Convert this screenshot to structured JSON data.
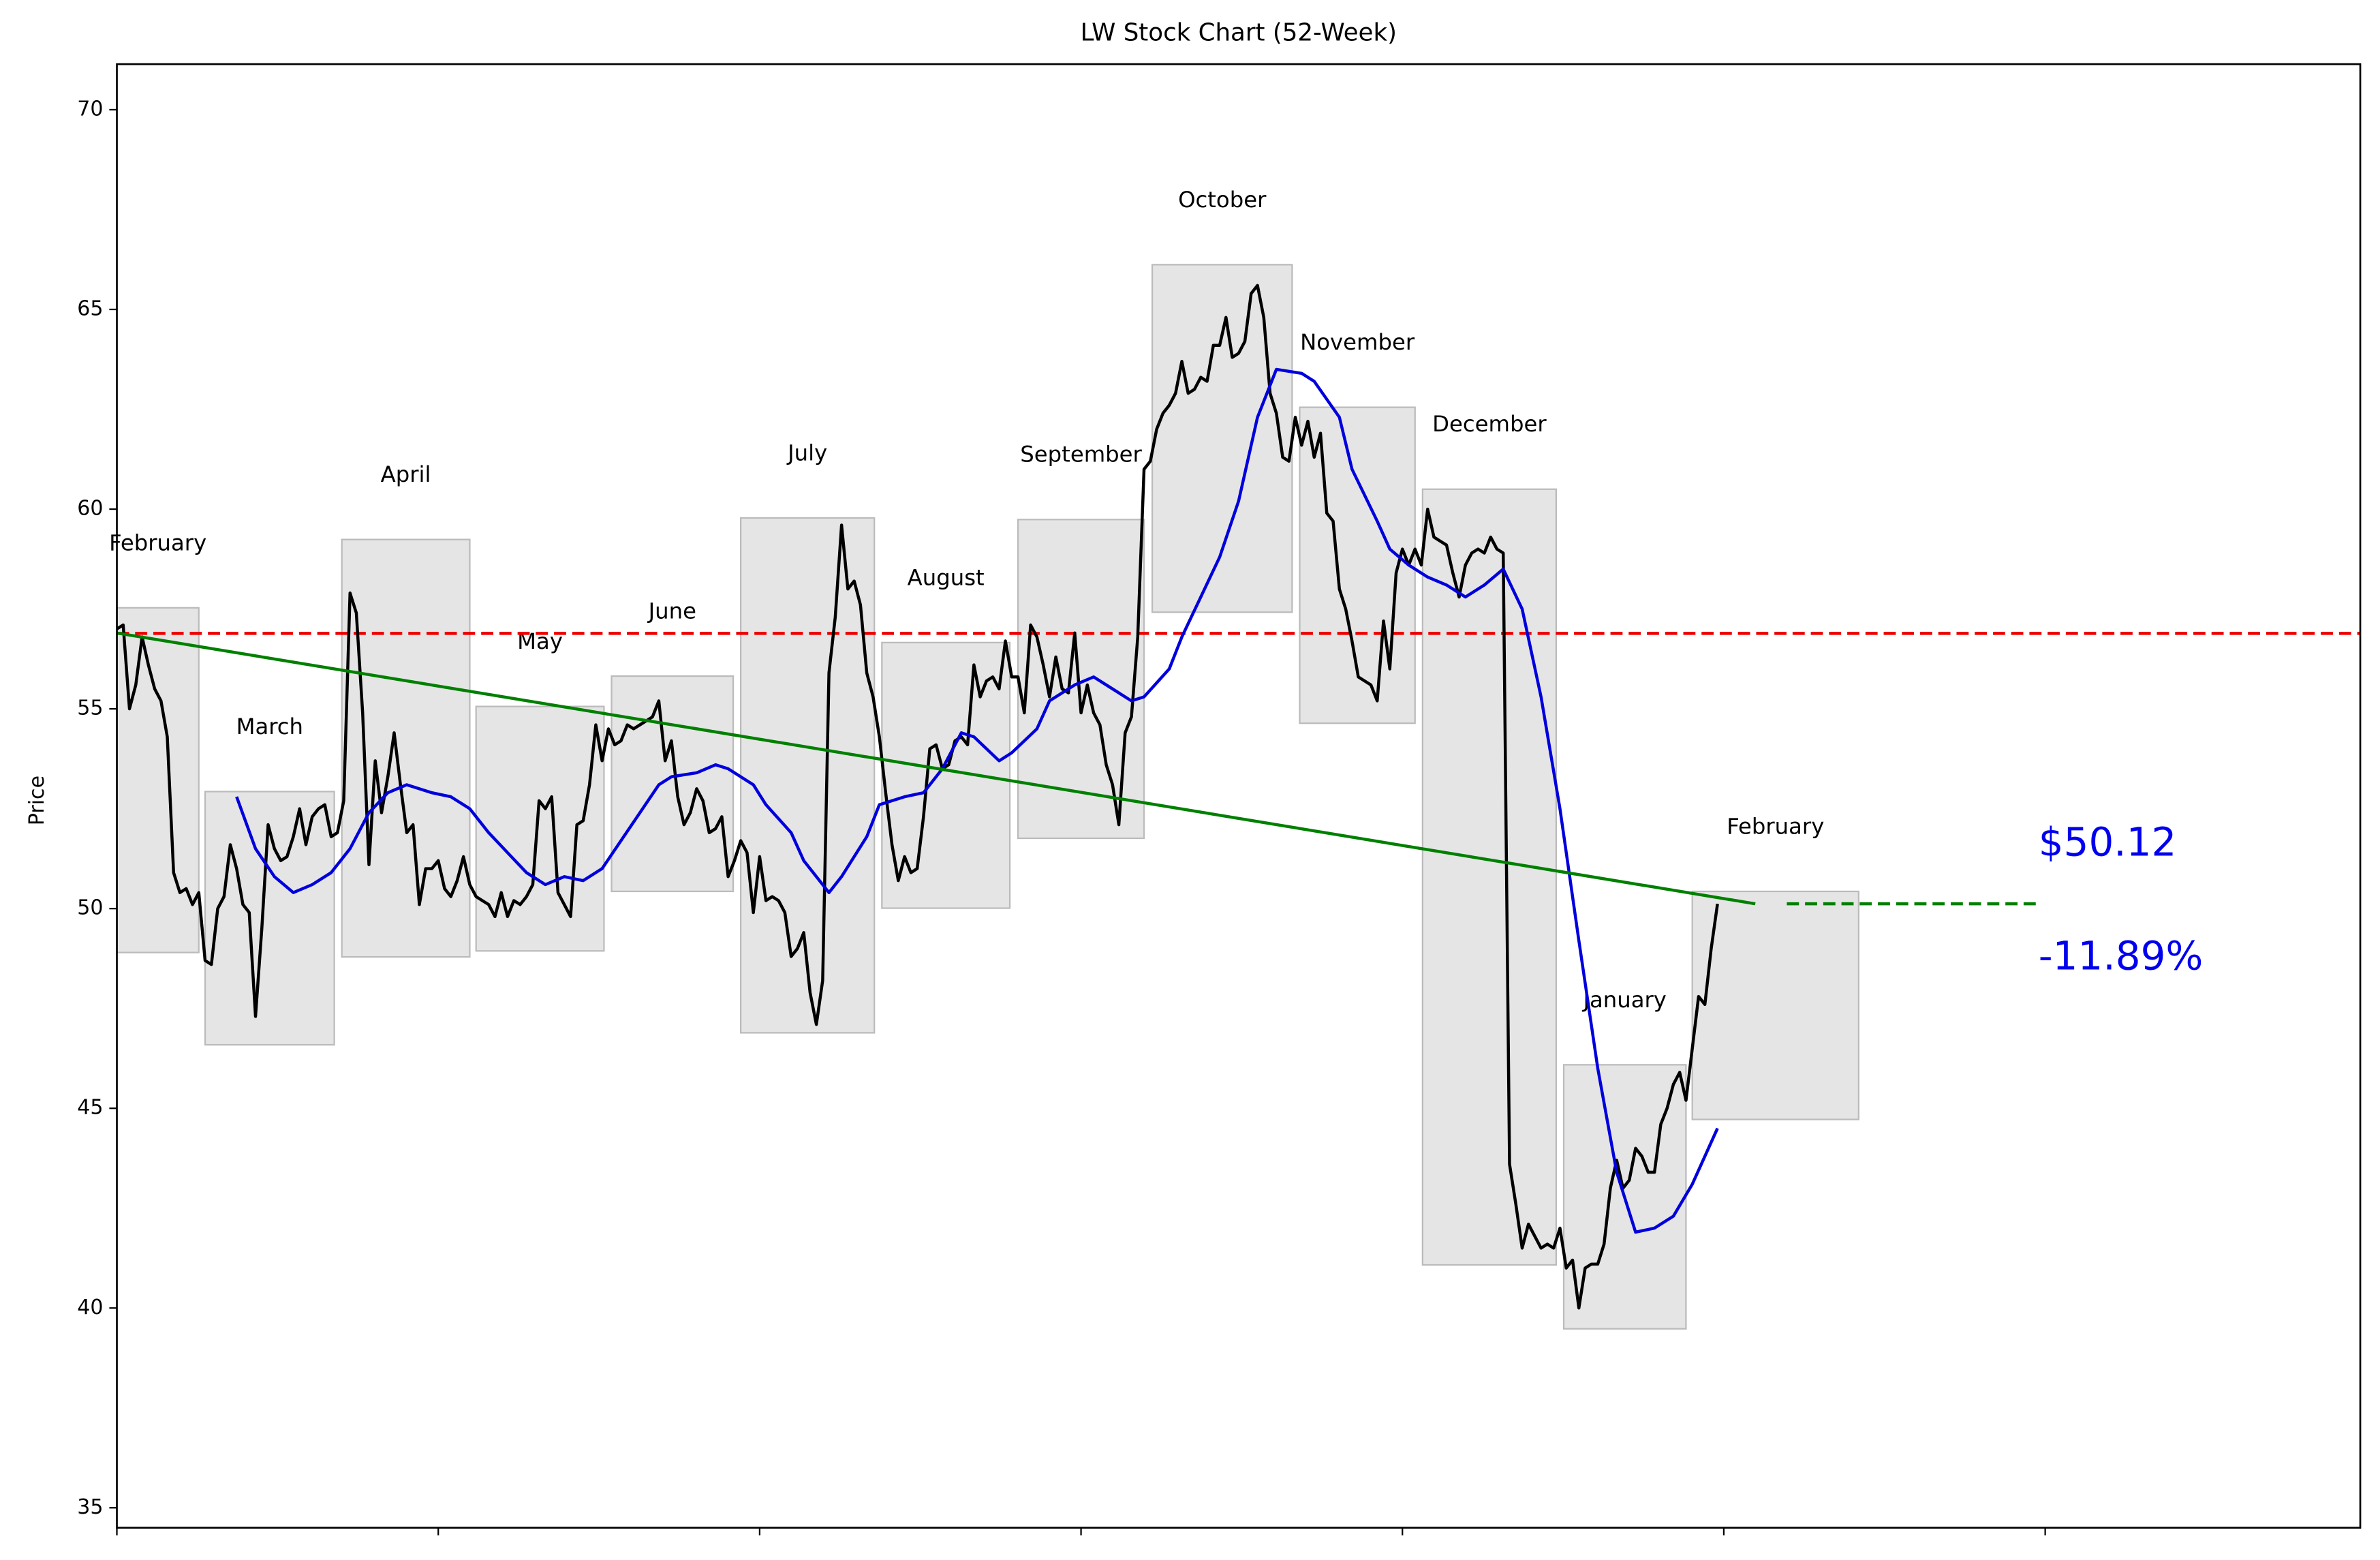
{
  "chart_data": {
    "type": "line",
    "title": "LW Stock Chart (52-Week)",
    "ylabel": "Price",
    "xlim": [
      0,
      356
    ],
    "xticks": [
      0,
      51,
      102,
      153,
      204,
      255,
      306
    ],
    "ylim": [
      34.5,
      71.14
    ],
    "yticks": [
      35,
      40,
      45,
      50,
      55,
      60,
      65,
      70
    ],
    "series": [
      {
        "color": "#000000",
        "values": [
          57.0,
          57.1,
          55.0,
          55.6,
          56.8,
          56.1,
          55.5,
          55.2,
          54.3,
          50.9,
          50.4,
          50.5,
          50.1,
          50.4,
          48.7,
          48.6,
          50.0,
          50.3,
          51.6,
          51.0,
          50.1,
          49.9,
          47.3,
          49.5,
          52.1,
          51.5,
          51.2,
          51.3,
          51.8,
          52.5,
          51.6,
          52.3,
          52.5,
          52.6,
          51.8,
          51.9,
          52.7,
          57.9,
          57.4,
          54.9,
          51.1,
          53.7,
          52.4,
          53.3,
          54.4,
          53.1,
          51.9,
          52.1,
          50.1,
          51.0,
          51.0,
          51.2,
          50.5,
          50.3,
          50.7,
          51.3,
          50.6,
          50.3,
          50.2,
          50.1,
          49.8,
          50.4,
          49.8,
          50.2,
          50.1,
          50.3,
          50.6,
          52.7,
          52.5,
          52.8,
          50.4,
          50.1,
          49.8,
          52.1,
          52.2,
          53.1,
          54.6,
          53.7,
          54.5,
          54.1,
          54.2,
          54.6,
          54.5,
          54.6,
          54.7,
          54.8,
          55.2,
          53.7,
          54.2,
          52.8,
          52.1,
          52.4,
          53.0,
          52.7,
          51.9,
          52.0,
          52.3,
          50.8,
          51.2,
          51.7,
          51.4,
          49.9,
          51.3,
          50.2,
          50.3,
          50.2,
          49.9,
          48.8,
          49.0,
          49.4,
          47.9,
          47.1,
          48.2,
          55.9,
          57.3,
          59.6,
          58.0,
          58.2,
          57.6,
          55.9,
          55.3,
          54.3,
          52.9,
          51.6,
          50.7,
          51.3,
          50.9,
          51.0,
          52.3,
          54.0,
          54.1,
          53.5,
          53.6,
          54.2,
          54.3,
          54.1,
          56.1,
          55.3,
          55.7,
          55.8,
          55.5,
          56.7,
          55.8,
          55.8,
          54.9,
          57.1,
          56.8,
          56.1,
          55.3,
          56.3,
          55.5,
          55.4,
          56.9,
          54.9,
          55.6,
          54.9,
          54.6,
          53.6,
          53.1,
          52.1,
          54.4,
          54.8,
          56.8,
          61.0,
          61.2,
          62.0,
          62.4,
          62.6,
          62.9,
          63.7,
          62.9,
          63.0,
          63.3,
          63.2,
          64.1,
          64.1,
          64.8,
          63.8,
          63.9,
          64.2,
          65.4,
          65.6,
          64.8,
          62.9,
          62.4,
          61.3,
          61.2,
          62.3,
          61.6,
          62.2,
          61.3,
          61.9,
          59.9,
          59.7,
          58.0,
          57.5,
          56.7,
          55.8,
          55.7,
          55.6,
          55.2,
          57.2,
          56.0,
          58.4,
          59.0,
          58.6,
          59.0,
          58.6,
          60.0,
          59.3,
          59.2,
          59.1,
          58.4,
          57.8,
          58.6,
          58.9,
          59.0,
          58.9,
          59.3,
          59.0,
          58.9,
          43.6,
          42.6,
          41.5,
          42.1,
          41.8,
          41.5,
          41.6,
          41.5,
          42.0,
          41.0,
          41.2,
          40.0,
          41.0,
          41.1,
          41.1,
          41.6,
          43.0,
          43.7,
          43.0,
          43.2,
          44.0,
          43.8,
          43.4,
          43.4,
          44.6,
          45.0,
          45.6,
          45.9,
          45.2,
          46.5,
          47.8,
          47.6,
          49.0,
          50.12
        ]
      },
      {
        "color": "#0000dd",
        "x": [
          19,
          22,
          25,
          28,
          31,
          34,
          37,
          40,
          43,
          46,
          50,
          53,
          56,
          59,
          62,
          65,
          68,
          71,
          74,
          77,
          80,
          83,
          86,
          88,
          92,
          95,
          97,
          101,
          103,
          107,
          109,
          113,
          115,
          119,
          121,
          125,
          128,
          131,
          134,
          136,
          140,
          142,
          146,
          148,
          152,
          155,
          158,
          161,
          163,
          167,
          169,
          172,
          175,
          178,
          181,
          184,
          188,
          190,
          194,
          196,
          200,
          202,
          205,
          208,
          211,
          214,
          217,
          220,
          223,
          226,
          229,
          232,
          235,
          238,
          241,
          244,
          247,
          250,
          254
        ],
        "values": [
          52.8,
          51.5,
          50.8,
          50.4,
          50.6,
          50.9,
          51.5,
          52.4,
          52.9,
          53.1,
          52.9,
          52.8,
          52.5,
          51.9,
          51.4,
          50.9,
          50.6,
          50.8,
          50.7,
          51.0,
          51.7,
          52.4,
          53.1,
          53.3,
          53.4,
          53.6,
          53.5,
          53.1,
          52.6,
          51.9,
          51.2,
          50.4,
          50.8,
          51.8,
          52.6,
          52.8,
          52.9,
          53.5,
          54.4,
          54.3,
          53.7,
          53.9,
          54.5,
          55.2,
          55.6,
          55.8,
          55.5,
          55.2,
          55.3,
          56.0,
          56.8,
          57.8,
          58.8,
          60.2,
          62.3,
          63.5,
          63.4,
          63.2,
          62.3,
          61.0,
          59.7,
          59.0,
          58.6,
          58.3,
          58.1,
          57.8,
          58.1,
          58.5,
          57.5,
          55.3,
          52.5,
          49.2,
          46.0,
          43.4,
          41.9,
          42.0,
          42.3,
          43.1,
          44.5
        ]
      }
    ],
    "months": [
      {
        "label": "February",
        "x": [
          0,
          13
        ],
        "high": 57.53,
        "low": 48.9
      },
      {
        "label": "March",
        "x": [
          14,
          34.5
        ],
        "high": 52.93,
        "low": 46.59
      },
      {
        "label": "April",
        "x": [
          35.7,
          56
        ],
        "high": 59.24,
        "low": 48.79
      },
      {
        "label": "May",
        "x": [
          57,
          77.3
        ],
        "high": 55.06,
        "low": 48.94
      },
      {
        "label": "June",
        "x": [
          78.5,
          97.8
        ],
        "high": 55.82,
        "low": 50.43
      },
      {
        "label": "July",
        "x": [
          99,
          120.2
        ],
        "high": 59.78,
        "low": 46.89
      },
      {
        "label": "August",
        "x": [
          121.4,
          141.7
        ],
        "high": 56.66,
        "low": 50.01
      },
      {
        "label": "September",
        "x": [
          143,
          163
        ],
        "high": 59.74,
        "low": 51.76
      },
      {
        "label": "October",
        "x": [
          164.3,
          186.5
        ],
        "high": 66.12,
        "low": 57.42
      },
      {
        "label": "November",
        "x": [
          187.7,
          206
        ],
        "high": 62.55,
        "low": 54.64
      },
      {
        "label": "December",
        "x": [
          207.2,
          228.4
        ],
        "high": 60.5,
        "low": 41.08
      },
      {
        "label": "January",
        "x": [
          229.6,
          249
        ],
        "high": 46.09,
        "low": 39.48
      },
      {
        "label": "February",
        "x": [
          250,
          276.4
        ],
        "high": 50.43,
        "low": 44.72
      }
    ],
    "reference_line": {
      "value": 56.89,
      "color": "#ee0000"
    },
    "trend_line": {
      "x": [
        0,
        260
      ],
      "values": [
        56.9,
        50.12
      ],
      "color": "#008000"
    },
    "projection": {
      "x": [
        265,
        305
      ],
      "value": 50.12,
      "color": "#008000"
    },
    "price_label": "$50.12",
    "change_label": "-11.89%"
  }
}
